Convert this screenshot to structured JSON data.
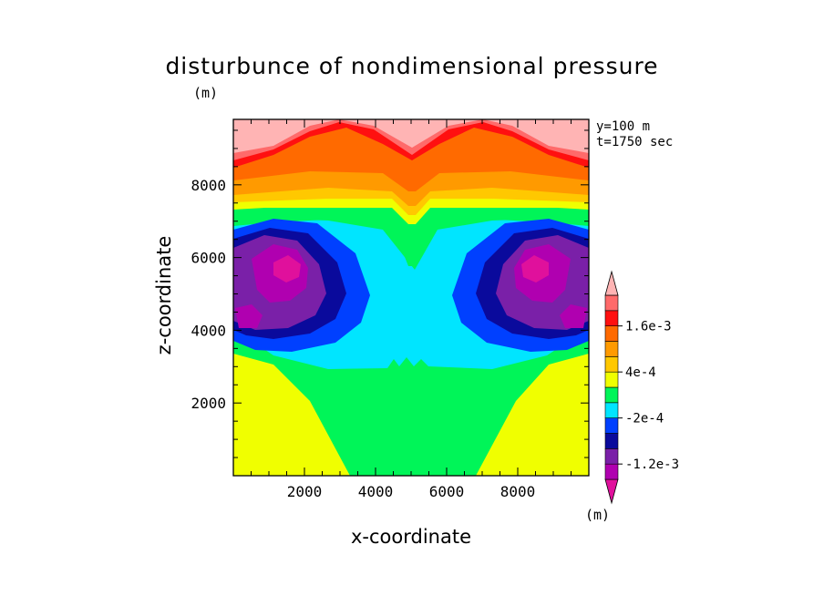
{
  "chart_data": {
    "type": "heatmap",
    "title": "disturbunce of nondimensional pressure",
    "axis_unit": "(m)",
    "xlabel": "x-coordinate",
    "ylabel": "z-coordinate",
    "xlim": [
      0,
      10000
    ],
    "ylim": [
      0,
      9800
    ],
    "x_ticks": [
      2000,
      4000,
      6000,
      8000
    ],
    "x_tick_labels": [
      "2000",
      "4000",
      "6000",
      "8000"
    ],
    "y_ticks": [
      2000,
      4000,
      6000,
      8000
    ],
    "y_tick_labels": [
      "2000",
      "4000",
      "6000",
      "8000"
    ],
    "annotations": [
      "y=100 m",
      "t=1750 sec"
    ],
    "colorbar": {
      "unit": "(m)",
      "levels": [
        -0.0016,
        -0.0012,
        -0.0008,
        -0.0004,
        -0.0002,
        0,
        0.0002,
        0.0004,
        0.0008,
        0.0012,
        0.0016
      ],
      "labeled_levels": [
        {
          "value": 0.0016,
          "label": "1.6e-3"
        },
        {
          "value": 0.0004,
          "label": "4e-4"
        },
        {
          "value": -0.0002,
          "label": "-2e-4"
        },
        {
          "value": -0.0012,
          "label": "-1.2e-3"
        }
      ],
      "colors": [
        "#e0109c",
        "#b000b0",
        "#7a20a8",
        "#0a0a9c",
        "#0040ff",
        "#00e5ff",
        "#00f558",
        "#f0ff00",
        "#ffc800",
        "#ff9a00",
        "#ff6a00",
        "#ff1010",
        "#ff6a6a",
        "#ffb4b4"
      ]
    },
    "field_regions": [
      {
        "level_index": 7,
        "description": "yellow lower corners"
      },
      {
        "level_index": 6,
        "description": "green lower centre"
      },
      {
        "level_index": 5,
        "description": "cyan middle"
      },
      {
        "level_index": 4,
        "description": "blue ring"
      },
      {
        "level_index": 3,
        "description": "dark blue lobes"
      },
      {
        "level_index": 2,
        "description": "purple lobes"
      },
      {
        "level_index": 1,
        "description": "magenta-purple cores"
      },
      {
        "level_index": 0,
        "description": "magenta centres near x=1500 and x=8500, z=5900"
      }
    ]
  }
}
